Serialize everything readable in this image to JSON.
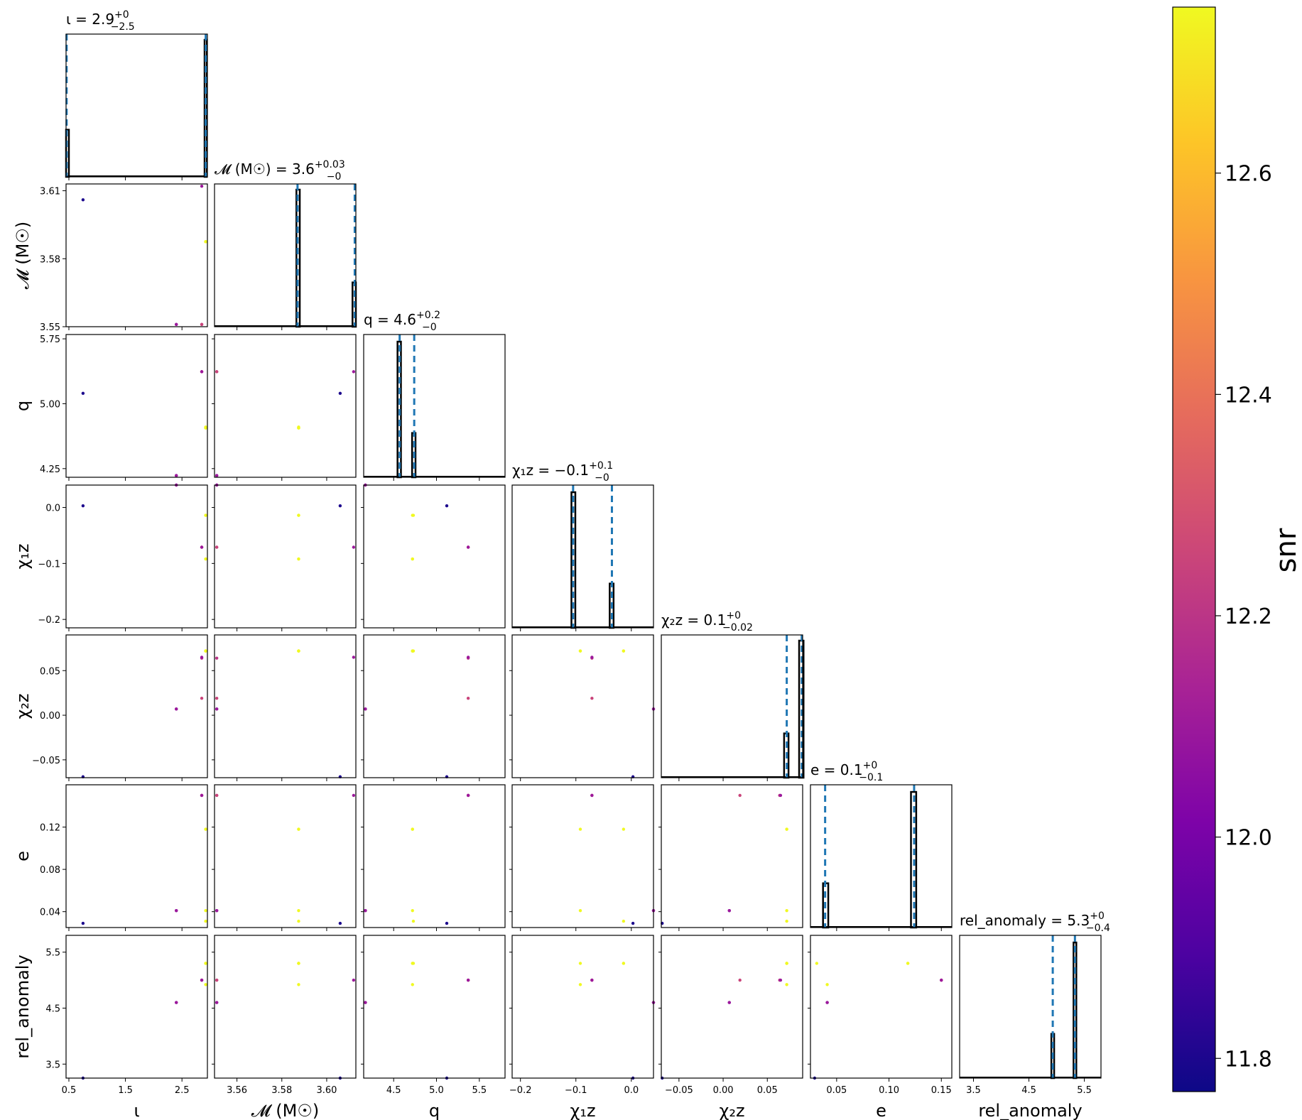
{
  "chart_data": {
    "type": "corner",
    "parameters": [
      {
        "label": "ι",
        "title": "ι = 2.9",
        "title_sup": "+0",
        "title_sub": "−2.5",
        "range": [
          0.45,
          2.95
        ],
        "ticks": [
          0.5,
          1.5,
          2.5
        ],
        "tick_labels": [
          "0.5",
          "1.5",
          "2.5"
        ],
        "quantiles": [
          0.46,
          2.92
        ],
        "hist": [
          {
            "x0": 0.45,
            "x1": 0.5,
            "h": 0.33
          },
          {
            "x0": 2.9,
            "x1": 2.94,
            "h": 0.96
          }
        ]
      },
      {
        "label": "𝓜 (M☉)",
        "title": "𝓜 (M☉) = 3.6",
        "title_sup": "+0.03",
        "title_sub": "−0",
        "range": [
          3.55,
          3.613
        ],
        "ticks": [
          3.55,
          3.58,
          3.61
        ],
        "tick_labels": [
          "3.55",
          "3.58",
          "3.61"
        ],
        "xticks": [
          3.56,
          3.58,
          3.6
        ],
        "xtick_labels": [
          "3.56",
          "3.58",
          "3.60"
        ],
        "quantiles": [
          3.587,
          3.6125
        ],
        "hist": [
          {
            "x0": 3.5865,
            "x1": 3.588,
            "h": 0.96
          },
          {
            "x0": 3.6115,
            "x1": 3.613,
            "h": 0.31
          }
        ]
      },
      {
        "label": "q",
        "title": "q = 4.6",
        "title_sup": "+0.2",
        "title_sub": "−0",
        "range": [
          4.15,
          5.8
        ],
        "ticks": [
          4.25,
          5.0,
          5.75
        ],
        "tick_labels": [
          "4.25",
          "5.00",
          "5.75"
        ],
        "xticks": [
          4.5,
          5.0,
          5.5
        ],
        "xtick_labels": [
          "4.5",
          "5.0",
          "5.5"
        ],
        "quantiles": [
          4.57,
          4.74
        ],
        "hist": [
          {
            "x0": 4.545,
            "x1": 4.585,
            "h": 0.95
          },
          {
            "x0": 4.715,
            "x1": 4.755,
            "h": 0.31
          }
        ]
      },
      {
        "label": "χ₁z",
        "title": "χ₁z = −0.1",
        "title_sup": "+0.1",
        "title_sub": "−0",
        "range": [
          -0.215,
          0.04
        ],
        "ticks": [
          -0.2,
          -0.1,
          0.0
        ],
        "tick_labels": [
          "−0.2",
          "−0.1",
          "0.0"
        ],
        "quantiles": [
          -0.105,
          -0.035
        ],
        "hist": [
          {
            "x0": -0.108,
            "x1": -0.101,
            "h": 0.95
          },
          {
            "x0": -0.039,
            "x1": -0.032,
            "h": 0.31
          }
        ]
      },
      {
        "label": "χ₂z",
        "title": "χ₂z = 0.1",
        "title_sup": "+0",
        "title_sub": "−0.02",
        "range": [
          -0.07,
          0.09
        ],
        "ticks": [
          -0.05,
          0.0,
          0.05
        ],
        "tick_labels": [
          "−0.05",
          "0.00",
          "0.05"
        ],
        "quantiles": [
          0.072,
          0.089
        ],
        "hist": [
          {
            "x0": 0.069,
            "x1": 0.074,
            "h": 0.31
          },
          {
            "x0": 0.086,
            "x1": 0.091,
            "h": 0.96
          }
        ]
      },
      {
        "label": "e",
        "title": "e = 0.1",
        "title_sup": "+0",
        "title_sub": "−0.1",
        "range": [
          0.025,
          0.16
        ],
        "ticks": [
          0.04,
          0.08,
          0.12
        ],
        "tick_labels": [
          "0.04",
          "0.08",
          "0.12"
        ],
        "xticks": [
          0.05,
          0.1,
          0.15
        ],
        "xtick_labels": [
          "0.05",
          "0.10",
          "0.15"
        ],
        "quantiles": [
          0.039,
          0.124
        ],
        "hist": [
          {
            "x0": 0.037,
            "x1": 0.042,
            "h": 0.31
          },
          {
            "x0": 0.121,
            "x1": 0.126,
            "h": 0.95
          }
        ]
      },
      {
        "label": "rel_anomaly",
        "title": "rel_anomaly = 5.3",
        "title_sup": "+0",
        "title_sub": "−0.4",
        "range": [
          3.25,
          5.8
        ],
        "ticks": [
          3.5,
          4.5,
          5.5
        ],
        "tick_labels": [
          "3.5",
          "4.5",
          "5.5"
        ],
        "quantiles": [
          4.93,
          5.33
        ],
        "hist": [
          {
            "x0": 4.905,
            "x1": 4.955,
            "h": 0.31
          },
          {
            "x0": 5.305,
            "x1": 5.355,
            "h": 0.95
          }
        ]
      }
    ],
    "samples": [
      {
        "vals": [
          0.75,
          3.606,
          5.12,
          0.003,
          -0.069,
          0.029,
          3.25
        ],
        "snr": 11.8
      },
      {
        "vals": [
          2.92,
          3.5875,
          4.73,
          -0.014,
          0.072,
          0.031,
          5.3
        ],
        "snr": 12.75
      },
      {
        "vals": [
          2.92,
          3.5875,
          4.72,
          -0.014,
          0.072,
          0.118,
          5.3
        ],
        "snr": 12.75
      },
      {
        "vals": [
          2.92,
          3.5875,
          4.72,
          -0.092,
          0.072,
          0.118,
          5.3
        ],
        "snr": 12.75
      },
      {
        "vals": [
          2.92,
          3.5875,
          4.72,
          -0.092,
          0.072,
          0.041,
          4.92
        ],
        "snr": 12.75
      },
      {
        "vals": [
          2.85,
          3.551,
          5.37,
          -0.071,
          0.064,
          0.15,
          5.0
        ],
        "snr": 12.2
      },
      {
        "vals": [
          2.85,
          3.551,
          5.37,
          -0.071,
          0.019,
          0.15,
          5.0
        ],
        "snr": 12.25
      },
      {
        "vals": [
          2.4,
          3.551,
          4.17,
          0.04,
          0.007,
          0.041,
          4.6
        ],
        "snr": 12.0
      },
      {
        "vals": [
          2.4,
          3.551,
          4.17,
          0.04,
          0.007,
          0.041,
          4.6
        ],
        "snr": 12.1
      },
      {
        "vals": [
          2.85,
          3.612,
          5.37,
          -0.071,
          0.065,
          0.15,
          5.0
        ],
        "snr": 12.1
      }
    ],
    "colorbar": {
      "label": "snr",
      "range": [
        11.77,
        12.75
      ],
      "ticks": [
        11.8,
        12.0,
        12.2,
        12.4,
        12.6
      ],
      "tick_labels": [
        "11.8",
        "12.0",
        "12.2",
        "12.4",
        "12.6"
      ],
      "colormap": "plasma"
    },
    "colors": {
      "quantile_line": "#1f77b4",
      "hist_edge": "#000000"
    }
  }
}
